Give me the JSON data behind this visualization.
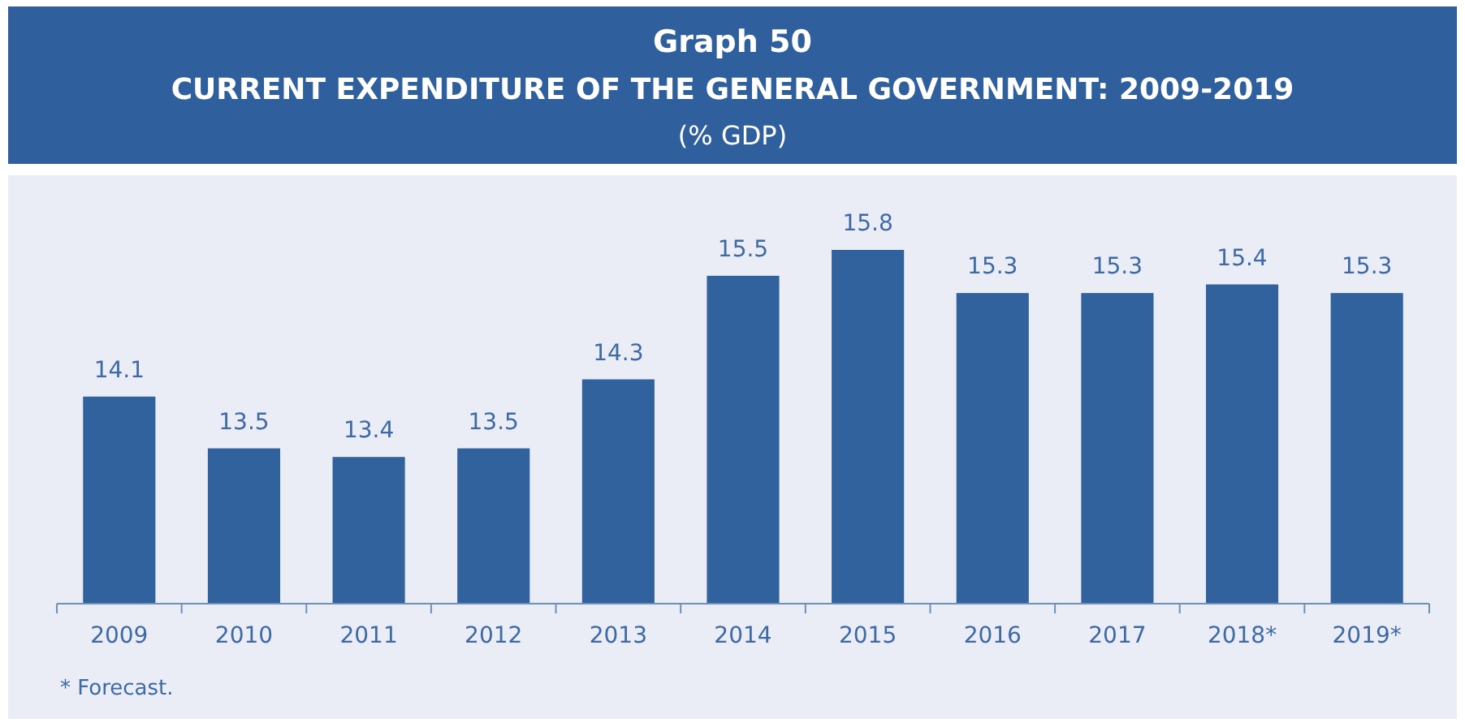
{
  "chart_data": {
    "type": "bar",
    "title": "Graph 50",
    "subtitle": "CURRENT EXPENDITURE OF THE GENERAL GOVERNMENT: 2009-2019",
    "categories": [
      "2009",
      "2010",
      "2011",
      "2012",
      "2013",
      "2014",
      "2015",
      "2016",
      "2017",
      "2018*",
      "2019*"
    ],
    "values": [
      14.1,
      13.5,
      13.4,
      13.5,
      14.3,
      15.5,
      15.8,
      15.3,
      15.3,
      15.4,
      15.3
    ],
    "color": "#31629e",
    "ylim": [
      11.7,
      15.8
    ],
    "tick_labels": "x",
    "data_labels": true,
    "annotations": [
      "(% GDP)",
      "* Forecast."
    ]
  }
}
